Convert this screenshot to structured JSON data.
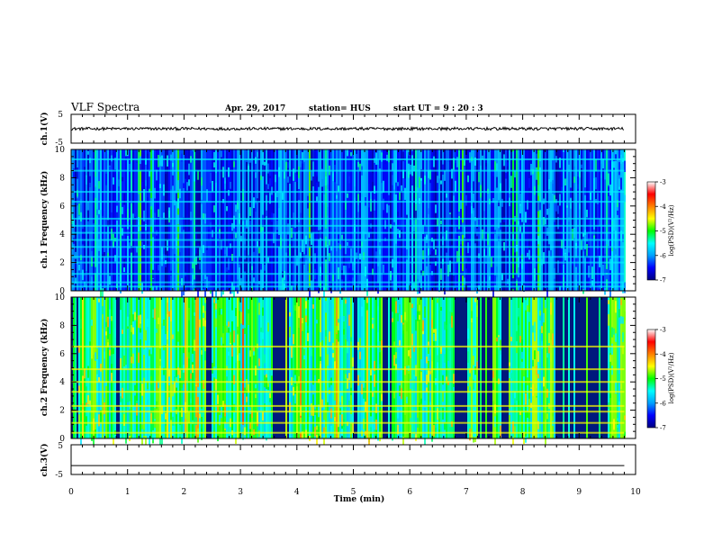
{
  "header": {
    "title": "VLF Spectra",
    "date": "Apr. 29, 2017",
    "station": "station= HUS",
    "start": "start  UT  =   9  : 20 : 3"
  },
  "colors": {
    "spectrogram_scale": [
      "#000080",
      "#0000ff",
      "#00a0ff",
      "#00ffff",
      "#00ff00",
      "#ffff00",
      "#ff8000",
      "#ff0000",
      "#ffffff"
    ]
  },
  "chart_data": [
    {
      "id": "ch1_waveform",
      "type": "line",
      "ylabel": "ch.1(V)",
      "ylim": [
        -5,
        5
      ],
      "yticks": [
        "5",
        "-5"
      ],
      "x_range": [
        0,
        10
      ],
      "data_extent_x": [
        0,
        9.8
      ],
      "signal_mean": 0,
      "signal_amplitude": 0.5
    },
    {
      "id": "ch1_spectrogram",
      "type": "heatmap",
      "ylabel": "ch.1 Frequency (kHz)",
      "ylim": [
        0,
        10
      ],
      "yticks": [
        "0",
        "2",
        "4",
        "6",
        "8",
        "10"
      ],
      "x_range": [
        0,
        10
      ],
      "data_extent_x": [
        0,
        9.8
      ],
      "colorbar": {
        "label": "log(PSD)(V²/Hz)",
        "range": [
          -7,
          -3
        ],
        "ticks": [
          "-3",
          "-4",
          "-5",
          "-6",
          "-7"
        ]
      },
      "typical_level": -6.3,
      "horizontal_lines_khz": [
        0.3,
        0.6,
        1.2,
        2.0,
        2.4,
        3.1,
        3.6,
        4.1,
        4.6,
        5.1,
        6.3,
        7.0,
        8.5,
        9.3
      ]
    },
    {
      "id": "ch2_spectrogram",
      "type": "heatmap",
      "ylabel": "ch.2 Frequency (kHz)",
      "ylim": [
        0,
        10
      ],
      "yticks": [
        "0",
        "2",
        "4",
        "6",
        "8",
        "10"
      ],
      "x_range": [
        0,
        10
      ],
      "data_extent_x": [
        0,
        9.8
      ],
      "colorbar": {
        "label": "log(PSD)(V²/Hz)",
        "range": [
          -7,
          -3
        ],
        "ticks": [
          "-3",
          "-4",
          "-5",
          "-6",
          "-7"
        ]
      },
      "typical_level": -5.2,
      "horizontal_lines_khz": [
        0.4,
        1.1,
        1.9,
        2.3,
        3.3,
        4.0,
        4.9,
        6.5
      ],
      "quiet_intervals_min": [
        [
          0.0,
          0.1
        ],
        [
          0.78,
          0.86
        ],
        [
          2.38,
          2.46
        ],
        [
          3.55,
          3.85
        ],
        [
          4.98,
          5.05
        ],
        [
          5.5,
          5.65
        ],
        [
          6.78,
          7.0
        ],
        [
          7.2,
          7.45
        ],
        [
          7.6,
          7.75
        ],
        [
          8.52,
          9.5
        ]
      ]
    },
    {
      "id": "ch3_waveform",
      "type": "line",
      "ylabel": "ch.3(V)",
      "ylim": [
        -5,
        5
      ],
      "yticks": [
        "5",
        "-5"
      ],
      "x_range": [
        0,
        10
      ],
      "data_extent_x": [
        0,
        9.8
      ],
      "signal_mean": -2,
      "signal_amplitude": 0,
      "xlabel": "Time  (min)",
      "xticks": [
        "0",
        "1",
        "2",
        "3",
        "4",
        "5",
        "6",
        "7",
        "8",
        "9",
        "10"
      ]
    }
  ]
}
